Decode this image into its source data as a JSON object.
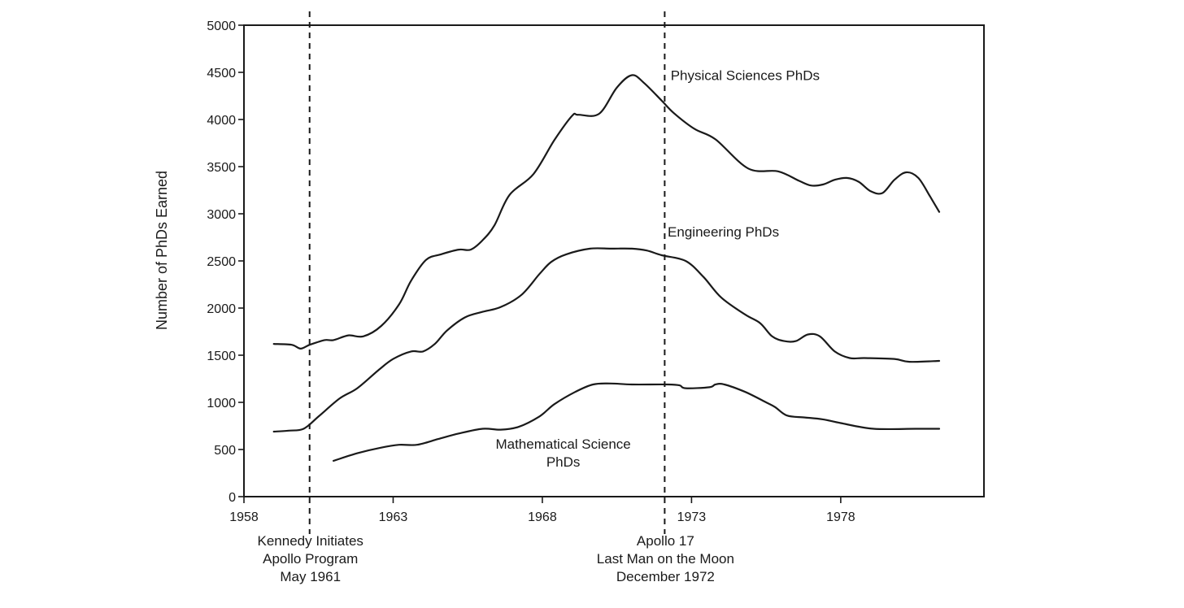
{
  "chart_data": {
    "type": "line",
    "title": "",
    "xlabel": "",
    "ylabel": "Number of PhDs Earned",
    "xlim": [
      1958,
      1982.8
    ],
    "ylim": [
      0,
      5000
    ],
    "x_ticks": [
      1958,
      1963,
      1968,
      1973,
      1978
    ],
    "y_ticks": [
      0,
      500,
      1000,
      1500,
      2000,
      2500,
      3000,
      3500,
      4000,
      4500,
      5000
    ],
    "grid": false,
    "legend": "none",
    "colors": {
      "line": "#1a1a1a",
      "text": "#1a1a1a"
    },
    "series": [
      {
        "name": "Physical Sciences PhDs",
        "label_lines": [
          "Physical Sciences PhDs"
        ],
        "label_anchor": [
          1972.3,
          4420
        ],
        "label_align": "start",
        "points": [
          [
            1959,
            1620
          ],
          [
            1959.6,
            1610
          ],
          [
            1959.9,
            1570
          ],
          [
            1960.2,
            1610
          ],
          [
            1960.7,
            1660
          ],
          [
            1961,
            1660
          ],
          [
            1961.5,
            1710
          ],
          [
            1962,
            1700
          ],
          [
            1962.6,
            1810
          ],
          [
            1963.2,
            2040
          ],
          [
            1963.6,
            2290
          ],
          [
            1964.1,
            2510
          ],
          [
            1964.6,
            2570
          ],
          [
            1965.2,
            2620
          ],
          [
            1965.6,
            2620
          ],
          [
            1966,
            2720
          ],
          [
            1966.4,
            2880
          ],
          [
            1966.9,
            3200
          ],
          [
            1967.7,
            3420
          ],
          [
            1968.4,
            3780
          ],
          [
            1969,
            4040
          ],
          [
            1969.2,
            4050
          ],
          [
            1969.9,
            4060
          ],
          [
            1970.5,
            4340
          ],
          [
            1971,
            4470
          ],
          [
            1971.4,
            4390
          ],
          [
            1972,
            4200
          ],
          [
            1972.4,
            4070
          ],
          [
            1973.1,
            3900
          ],
          [
            1973.8,
            3790
          ],
          [
            1974.9,
            3480
          ],
          [
            1975.9,
            3450
          ],
          [
            1976.6,
            3350
          ],
          [
            1977,
            3300
          ],
          [
            1977.4,
            3310
          ],
          [
            1977.8,
            3360
          ],
          [
            1978.2,
            3380
          ],
          [
            1978.6,
            3340
          ],
          [
            1979,
            3240
          ],
          [
            1979.4,
            3220
          ],
          [
            1979.8,
            3360
          ],
          [
            1980.2,
            3440
          ],
          [
            1980.6,
            3380
          ],
          [
            1981,
            3180
          ],
          [
            1981.3,
            3020
          ]
        ]
      },
      {
        "name": "Engineering PhDs",
        "label_lines": [
          "Engineering PhDs"
        ],
        "label_anchor": [
          1972.2,
          2760
        ],
        "label_align": "start",
        "points": [
          [
            1959,
            690
          ],
          [
            1959.5,
            700
          ],
          [
            1960,
            720
          ],
          [
            1960.5,
            850
          ],
          [
            1961.2,
            1040
          ],
          [
            1961.8,
            1150
          ],
          [
            1962.5,
            1340
          ],
          [
            1963,
            1460
          ],
          [
            1963.6,
            1540
          ],
          [
            1964,
            1540
          ],
          [
            1964.4,
            1620
          ],
          [
            1964.8,
            1760
          ],
          [
            1965.4,
            1900
          ],
          [
            1966,
            1960
          ],
          [
            1966.6,
            2010
          ],
          [
            1967.3,
            2140
          ],
          [
            1967.9,
            2360
          ],
          [
            1968.3,
            2490
          ],
          [
            1968.8,
            2570
          ],
          [
            1969.6,
            2630
          ],
          [
            1970.3,
            2630
          ],
          [
            1971,
            2630
          ],
          [
            1971.5,
            2610
          ],
          [
            1972,
            2560
          ],
          [
            1972.8,
            2500
          ],
          [
            1973.4,
            2330
          ],
          [
            1974,
            2110
          ],
          [
            1974.8,
            1930
          ],
          [
            1975.3,
            1840
          ],
          [
            1975.7,
            1700
          ],
          [
            1976.1,
            1650
          ],
          [
            1976.5,
            1650
          ],
          [
            1976.9,
            1720
          ],
          [
            1977.3,
            1700
          ],
          [
            1977.8,
            1540
          ],
          [
            1978.3,
            1470
          ],
          [
            1978.8,
            1470
          ],
          [
            1979.8,
            1460
          ],
          [
            1980.3,
            1430
          ],
          [
            1981.3,
            1440
          ]
        ]
      },
      {
        "name": "Mathematical Science PhDs",
        "label_lines": [
          "Mathematical Science",
          "PhDs"
        ],
        "label_anchor": [
          1968.7,
          510
        ],
        "label_align": "middle",
        "points": [
          [
            1961,
            380
          ],
          [
            1961.8,
            460
          ],
          [
            1962.6,
            520
          ],
          [
            1963.2,
            550
          ],
          [
            1963.8,
            550
          ],
          [
            1964.5,
            610
          ],
          [
            1965.2,
            670
          ],
          [
            1966,
            720
          ],
          [
            1966.6,
            710
          ],
          [
            1967.2,
            740
          ],
          [
            1967.9,
            850
          ],
          [
            1968.4,
            980
          ],
          [
            1969.1,
            1110
          ],
          [
            1969.7,
            1190
          ],
          [
            1970.3,
            1200
          ],
          [
            1971,
            1190
          ],
          [
            1972.2,
            1190
          ],
          [
            1972.6,
            1180
          ],
          [
            1972.8,
            1150
          ],
          [
            1973.6,
            1160
          ],
          [
            1973.8,
            1190
          ],
          [
            1974.1,
            1190
          ],
          [
            1974.8,
            1110
          ],
          [
            1975.5,
            1000
          ],
          [
            1975.8,
            950
          ],
          [
            1976.2,
            860
          ],
          [
            1976.8,
            840
          ],
          [
            1977.4,
            820
          ],
          [
            1978,
            780
          ],
          [
            1979.1,
            720
          ],
          [
            1980.5,
            720
          ],
          [
            1981.3,
            720
          ]
        ]
      }
    ],
    "annotations": [
      {
        "name": "kennedy",
        "x": 1960.2,
        "lines": [
          "Kennedy Initiates",
          "Apollo Program",
          "May 1961"
        ]
      },
      {
        "name": "apollo17",
        "x": 1972.1,
        "lines": [
          "Apollo 17",
          "Last Man on the Moon",
          "December 1972"
        ]
      }
    ]
  }
}
